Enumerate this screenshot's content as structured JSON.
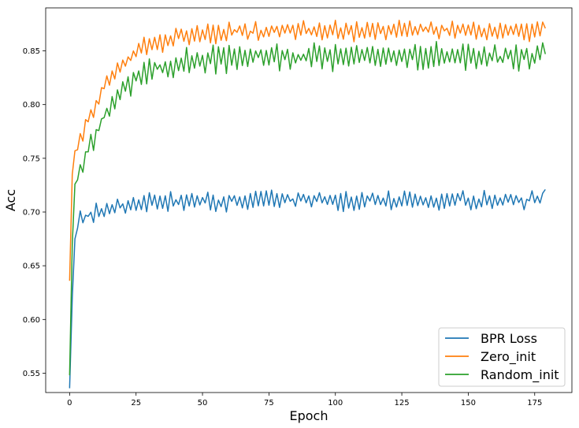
{
  "chart_data": {
    "type": "line",
    "title": "",
    "xlabel": "Epoch",
    "ylabel": "Acc",
    "xlim": [
      -9,
      189
    ],
    "ylim": [
      0.532,
      0.89
    ],
    "xticks": [
      0,
      25,
      50,
      75,
      100,
      125,
      150,
      175
    ],
    "yticks": [
      0.55,
      0.6,
      0.65,
      0.7,
      0.75,
      0.8,
      0.85
    ],
    "xtick_labels": [
      "0",
      "25",
      "50",
      "75",
      "100",
      "125",
      "150",
      "175"
    ],
    "ytick_labels": [
      "0.55",
      "0.60",
      "0.65",
      "0.70",
      "0.75",
      "0.80",
      "0.85"
    ],
    "grid": false,
    "legend_position": "lower-right",
    "n_points": 180,
    "series": [
      {
        "name": "BPR Loss",
        "color": "#1f77b4",
        "start": 0.536,
        "early": [
          0.536,
          0.62,
          0.675,
          0.685,
          0.701,
          0.69,
          0.697,
          0.696
        ],
        "plateau": 0.711,
        "amplitude": 0.008,
        "end": 0.721
      },
      {
        "name": "Zero_init",
        "color": "#ff7f0e",
        "start": 0.636,
        "early": [
          0.636,
          0.735,
          0.757,
          0.758,
          0.773,
          0.766,
          0.786,
          0.784
        ],
        "plateau": 0.869,
        "amplitude": 0.008,
        "end": 0.871
      },
      {
        "name": "Random_init",
        "color": "#2ca02c",
        "start": 0.548,
        "early": [
          0.548,
          0.67,
          0.726,
          0.73,
          0.744,
          0.737,
          0.756,
          0.756
        ],
        "plateau": 0.845,
        "amplitude": 0.011,
        "end": 0.847
      }
    ]
  }
}
